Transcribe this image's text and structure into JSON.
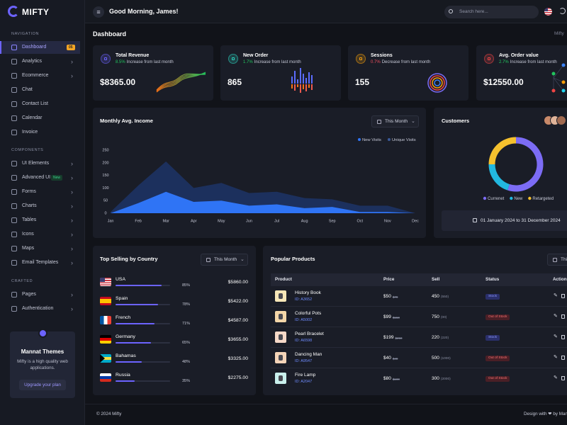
{
  "brand": "MIFTY",
  "header": {
    "greeting": "Good Morning, James!",
    "search_placeholder": "Search here..."
  },
  "sidebar": {
    "sections": [
      {
        "title": "NAVIGATION",
        "items": [
          {
            "label": "Dashboard",
            "badge": "05",
            "active": true
          },
          {
            "label": "Analytics",
            "expandable": true
          },
          {
            "label": "Ecommerce",
            "expandable": true
          },
          {
            "label": "Chat"
          },
          {
            "label": "Contact List"
          },
          {
            "label": "Calendar"
          },
          {
            "label": "Invoice"
          }
        ]
      },
      {
        "title": "COMPONENTS",
        "items": [
          {
            "label": "UI Elements",
            "expandable": true
          },
          {
            "label": "Advanced UI",
            "badge": "New",
            "expandable": true
          },
          {
            "label": "Forms",
            "expandable": true
          },
          {
            "label": "Charts",
            "expandable": true
          },
          {
            "label": "Tables",
            "expandable": true
          },
          {
            "label": "Icons",
            "expandable": true
          },
          {
            "label": "Maps",
            "expandable": true
          },
          {
            "label": "Email Templates",
            "expandable": true
          }
        ]
      },
      {
        "title": "CRAFTED",
        "items": [
          {
            "label": "Pages",
            "expandable": true
          },
          {
            "label": "Authentication",
            "expandable": true
          }
        ]
      }
    ]
  },
  "promo": {
    "title": "Mannat Themes",
    "text": "Mifty is a high quality web applications.",
    "button": "Upgrade your plan"
  },
  "page": {
    "title": "Dashboard",
    "breadcrumb": "Mifty"
  },
  "stats": [
    {
      "title": "Total Revenue",
      "change": "8.5%",
      "note": "Increase from last month",
      "trend": "up",
      "value": "$8365.00"
    },
    {
      "title": "New Order",
      "change": "1.7%",
      "note": "Increase from last month",
      "trend": "up",
      "value": "865"
    },
    {
      "title": "Sessions",
      "change": "0.7%",
      "note": "Decrease from last month",
      "trend": "down",
      "value": "155"
    },
    {
      "title": "Avg. Order value",
      "change": "2.7%",
      "note": "Increase from last month",
      "trend": "up",
      "value": "$12550.00"
    }
  ],
  "chart_data": [
    {
      "type": "area",
      "title": "Monthly Avg. Income",
      "filter": "This Month",
      "categories": [
        "Jan",
        "Feb",
        "Mar",
        "Apr",
        "May",
        "Jun",
        "Jul",
        "Aug",
        "Sep",
        "Oct",
        "Nov",
        "Dec"
      ],
      "series": [
        {
          "name": "New Visits",
          "color": "#2f74f5",
          "values": [
            0,
            40,
            85,
            45,
            50,
            30,
            35,
            20,
            25,
            5,
            5,
            0
          ]
        },
        {
          "name": "Unique Visits",
          "color": "#1c3260",
          "values": [
            5,
            110,
            205,
            100,
            120,
            80,
            85,
            60,
            55,
            30,
            30,
            0
          ]
        }
      ],
      "ylim": [
        0,
        250
      ],
      "yticks": [
        0,
        50,
        100,
        150,
        200,
        250
      ]
    },
    {
      "type": "donut",
      "title": "Customers",
      "categories": [
        "Currenet",
        "New",
        "Retargeted"
      ],
      "values": [
        55,
        20,
        25
      ],
      "colors": [
        "#7c6cf5",
        "#22b8e0",
        "#f5c12e"
      ],
      "date_range": "01 January 2024 to 31 December 2024"
    }
  ],
  "top_selling": {
    "title": "Top Selling by Country",
    "filter": "This Month",
    "rows": [
      {
        "country": "USA",
        "percent": 85,
        "percent_label": "85%",
        "amount": "$5860.00"
      },
      {
        "country": "Spain",
        "percent": 78,
        "percent_label": "78%",
        "amount": "$5422.00"
      },
      {
        "country": "French",
        "percent": 71,
        "percent_label": "71%",
        "amount": "$4587.00"
      },
      {
        "country": "Germany",
        "percent": 65,
        "percent_label": "65%",
        "amount": "$3655.00"
      },
      {
        "country": "Bahamas",
        "percent": 48,
        "percent_label": "48%",
        "amount": "$3325.00"
      },
      {
        "country": "Russia",
        "percent": 35,
        "percent_label": "35%",
        "amount": "$2275.00"
      }
    ]
  },
  "products": {
    "title": "Popular Products",
    "filter": "This Month",
    "columns": [
      "Product",
      "Price",
      "Sell",
      "Status",
      "Action"
    ],
    "rows": [
      {
        "name": "History Book",
        "id": "ID: A3652",
        "price": "$50",
        "old_price": "$70",
        "sell": "450",
        "sell_total": "(550)",
        "status": "Stock"
      },
      {
        "name": "Colorful Pots",
        "id": "ID: A5002",
        "price": "$99",
        "old_price": "$150",
        "sell": "750",
        "sell_total": "(00)",
        "status": "Out of Stock"
      },
      {
        "name": "Pearl Bracelet",
        "id": "ID: A6598",
        "price": "$199",
        "old_price": "$250",
        "sell": "220",
        "sell_total": "(220)",
        "status": "Stock"
      },
      {
        "name": "Dancing Man",
        "id": "ID: A9547",
        "price": "$40",
        "old_price": "$49",
        "sell": "500",
        "sell_total": "(1000)",
        "status": "Out of Stock"
      },
      {
        "name": "Fire Lamp",
        "id": "ID: A2047",
        "price": "$80",
        "old_price": "$100",
        "sell": "300",
        "sell_total": "(2000)",
        "status": "Out of Stock"
      }
    ]
  },
  "footer": {
    "copyright": "© 2024 Mifty",
    "credit": "Design with ❤ by Mannatthemes"
  }
}
